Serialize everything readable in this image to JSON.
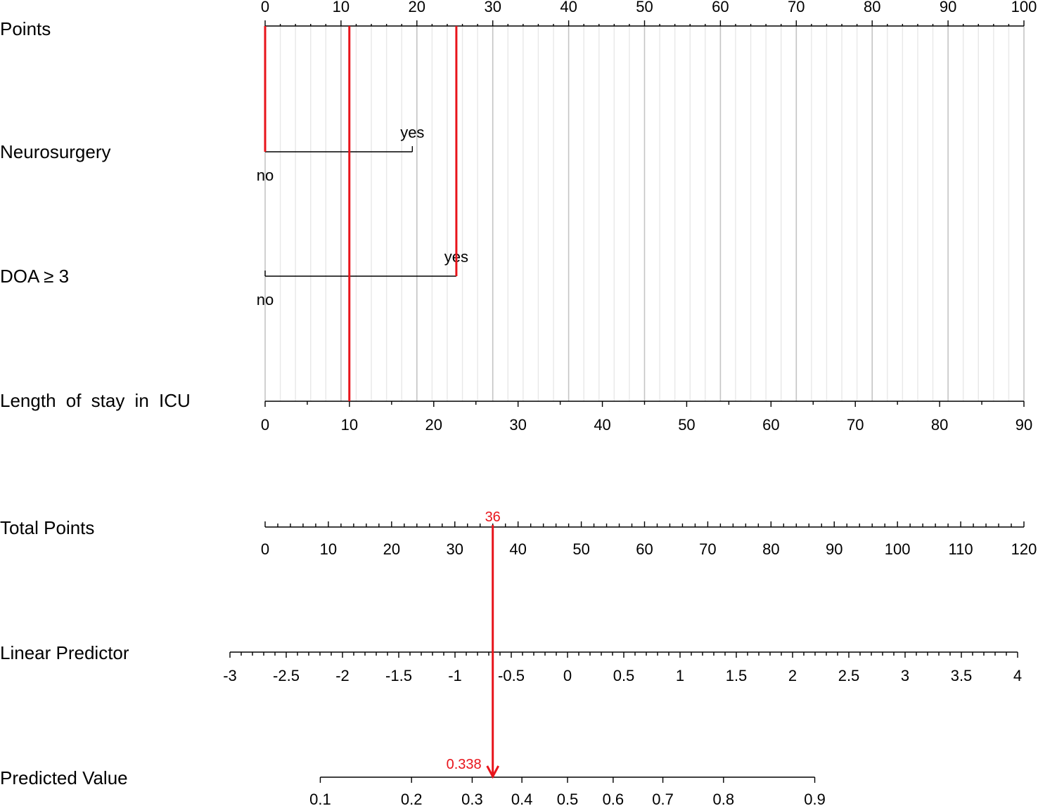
{
  "chart_data": {
    "type": "nomogram",
    "rows": [
      {
        "label": "Points",
        "kind": "points",
        "range": [
          0,
          100
        ],
        "ticks": [
          0,
          10,
          20,
          30,
          40,
          50,
          60,
          70,
          80,
          90,
          100
        ],
        "minor_step": 2
      },
      {
        "label": "Neurosurgery",
        "kind": "categorical",
        "levels": [
          {
            "name": "no",
            "points": 0
          },
          {
            "name": "yes",
            "points": 19.4
          }
        ]
      },
      {
        "label": "DOA ≥ 3",
        "kind": "categorical",
        "levels": [
          {
            "name": "no",
            "points": 0
          },
          {
            "name": "yes",
            "points": 25.2
          }
        ]
      },
      {
        "label": "Length of stay in ICU",
        "kind": "continuous",
        "range": [
          0,
          90
        ],
        "points_range": [
          0,
          100
        ],
        "ticks": [
          0,
          10,
          20,
          30,
          40,
          50,
          60,
          70,
          80,
          90
        ],
        "minor_step": 5
      },
      {
        "label": "Total Points",
        "kind": "total",
        "range": [
          0,
          120
        ],
        "ticks": [
          0,
          10,
          20,
          30,
          40,
          50,
          60,
          70,
          80,
          90,
          100,
          110,
          120
        ],
        "minor_step": 2
      },
      {
        "label": "Linear Predictor",
        "kind": "linear",
        "range": [
          -3,
          4
        ],
        "total_at_min": -45.7,
        "total_at_max": 79,
        "ticks": [
          "-3",
          "-2.5",
          "-2",
          "-1.5",
          "-1",
          "-0.5",
          "0",
          "0.5",
          "1",
          "1.5",
          "2",
          "2.5",
          "3",
          "3.5",
          "4"
        ]
      },
      {
        "label": "Predicted Value",
        "kind": "probability",
        "ticks": [
          "0.1",
          "0.2",
          "0.3",
          "0.4",
          "0.5",
          "0.6",
          "0.7",
          "0.8",
          "0.9"
        ]
      }
    ],
    "example": {
      "selections": [
        {
          "variable": "Neurosurgery",
          "value": "no",
          "points": 0
        },
        {
          "variable": "Length of stay in ICU",
          "value": 10,
          "points": 11.1
        },
        {
          "variable": "DOA ≥ 3",
          "value": "yes",
          "points": 25.2
        }
      ],
      "total_points": 36,
      "total_label": "36",
      "predicted_value": 0.338,
      "predicted_label": "0.338"
    },
    "colors": {
      "annotation": "#e8141b",
      "grid_major": "#c4c4c4",
      "grid_minor": "#e8e8e8",
      "axis": "#000000"
    }
  }
}
